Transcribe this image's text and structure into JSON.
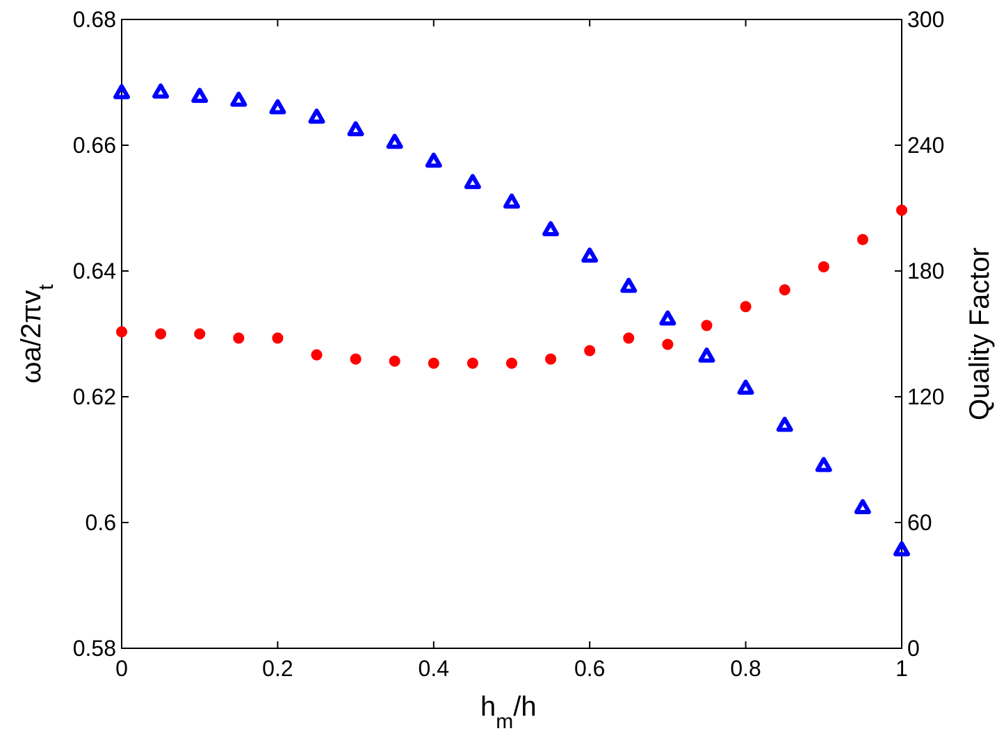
{
  "chart_data": {
    "type": "scatter",
    "title": "",
    "xlabel": {
      "main": "h",
      "sub": "m",
      "rest": "/h"
    },
    "ylabel_left": {
      "main": "ωa/2πv",
      "sub": "t"
    },
    "ylabel_right": "Quality Factor",
    "xlim": [
      0,
      1
    ],
    "ylim_left": [
      0.58,
      0.68
    ],
    "ylim_right": [
      0,
      300
    ],
    "x_ticks": [
      0,
      0.2,
      0.4,
      0.6,
      0.8,
      1
    ],
    "x_tick_labels": [
      "0",
      "0.2",
      "0.4",
      "0.6",
      "0.8",
      "1"
    ],
    "y_left_ticks": [
      0.58,
      0.6,
      0.62,
      0.64,
      0.66,
      0.68
    ],
    "y_left_tick_labels": [
      "0.58",
      "0.6",
      "0.62",
      "0.64",
      "0.66",
      "0.68"
    ],
    "y_right_ticks": [
      0,
      60,
      120,
      180,
      240,
      300
    ],
    "y_right_tick_labels": [
      "0",
      "60",
      "120",
      "180",
      "240",
      "300"
    ],
    "grid": false,
    "x": [
      0,
      0.05,
      0.1,
      0.15,
      0.2,
      0.25,
      0.3,
      0.35,
      0.4,
      0.45,
      0.5,
      0.55,
      0.6,
      0.65,
      0.7,
      0.75,
      0.8,
      0.85,
      0.9,
      0.95,
      1.0
    ],
    "series": [
      {
        "axis": "left",
        "marker": "triangle",
        "color": "#0000ff",
        "values": [
          0.6684,
          0.6685,
          0.6678,
          0.6672,
          0.666,
          0.6645,
          0.6625,
          0.6605,
          0.6575,
          0.6541,
          0.651,
          0.6466,
          0.6424,
          0.6376,
          0.6324,
          0.6265,
          0.6214,
          0.6155,
          0.6091,
          0.6024,
          0.5957
        ]
      },
      {
        "axis": "right",
        "marker": "circle",
        "color": "#ff0000",
        "values": [
          151,
          150,
          150,
          148,
          148,
          140,
          138,
          137,
          136,
          136,
          136,
          138,
          142,
          148,
          145,
          154,
          163,
          171,
          182,
          195,
          209
        ]
      }
    ]
  }
}
